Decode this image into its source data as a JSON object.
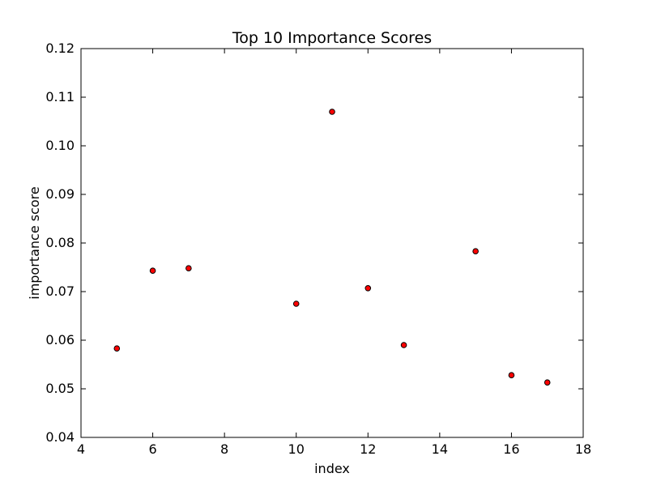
{
  "chart_data": {
    "type": "scatter",
    "title": "Top 10 Importance Scores",
    "xlabel": "index",
    "ylabel": "importance score",
    "xlim": [
      4,
      18
    ],
    "ylim": [
      0.04,
      0.12
    ],
    "x_ticks": [
      4,
      6,
      8,
      10,
      12,
      14,
      16,
      18
    ],
    "x_tick_labels": [
      "4",
      "6",
      "8",
      "10",
      "12",
      "14",
      "16",
      "18"
    ],
    "y_ticks": [
      0.04,
      0.05,
      0.06,
      0.07,
      0.08,
      0.09,
      0.1,
      0.11,
      0.12
    ],
    "y_tick_labels": [
      "0.04",
      "0.05",
      "0.06",
      "0.07",
      "0.08",
      "0.09",
      "0.10",
      "0.11",
      "0.12"
    ],
    "grid": false,
    "legend": "none",
    "marker_color": "#ff0000",
    "marker_edge_color": "#000000",
    "points": [
      {
        "x": 5,
        "y": 0.0583
      },
      {
        "x": 6,
        "y": 0.0743
      },
      {
        "x": 7,
        "y": 0.0748
      },
      {
        "x": 10,
        "y": 0.0675
      },
      {
        "x": 11,
        "y": 0.107
      },
      {
        "x": 12,
        "y": 0.0707
      },
      {
        "x": 13,
        "y": 0.059
      },
      {
        "x": 15,
        "y": 0.0783
      },
      {
        "x": 16,
        "y": 0.0528
      },
      {
        "x": 17,
        "y": 0.0513
      }
    ]
  }
}
